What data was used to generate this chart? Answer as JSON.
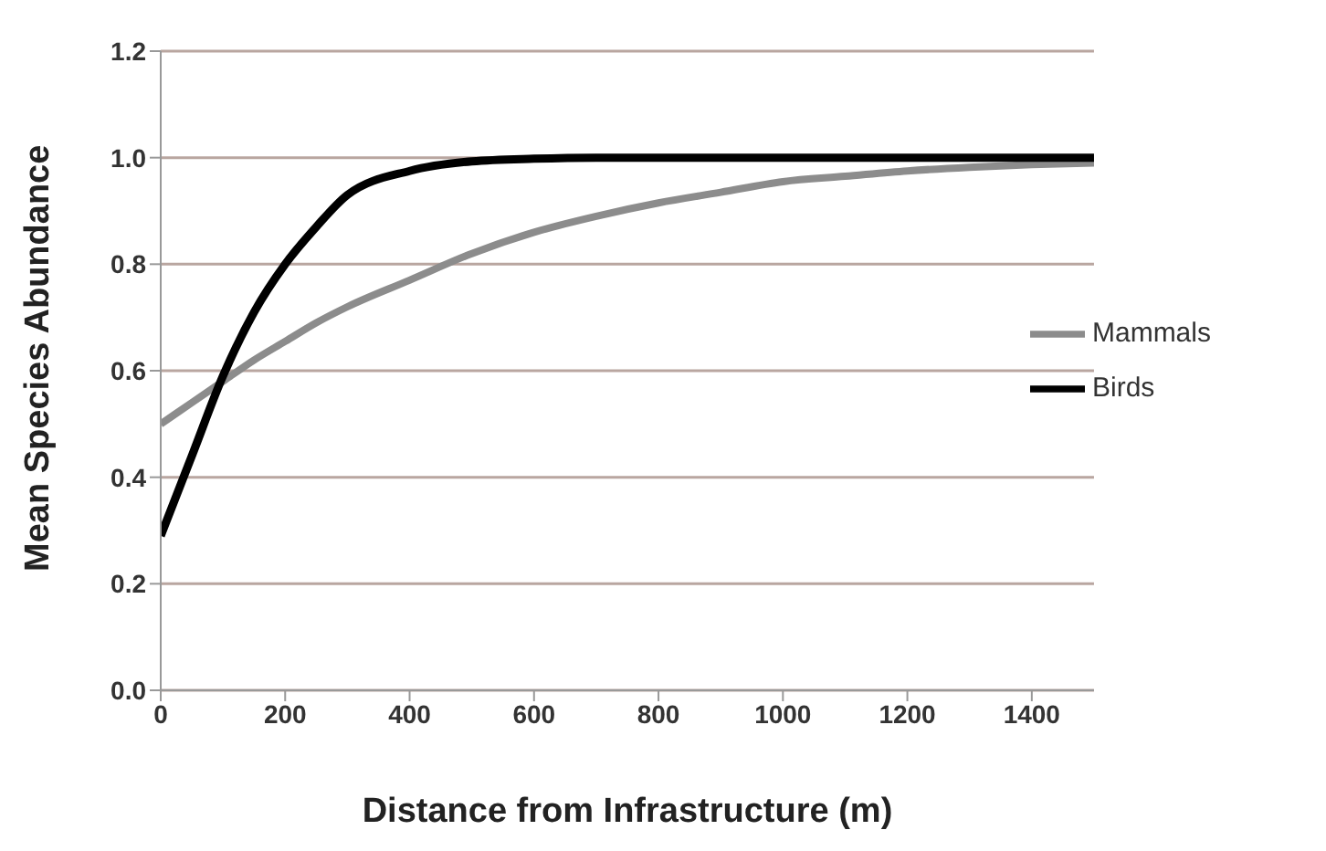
{
  "chart_data": {
    "type": "line",
    "xlabel": "Distance from Infrastructure (m)",
    "ylabel": "Mean Species Abundance",
    "x": [
      0,
      50,
      100,
      150,
      200,
      250,
      300,
      400,
      500,
      600,
      700,
      800,
      900,
      1000,
      1100,
      1200,
      1300,
      1400,
      1500
    ],
    "series": [
      {
        "name": "Mammals",
        "color": "#8c8c8c",
        "values": [
          0.5,
          0.54,
          0.58,
          0.62,
          0.655,
          0.69,
          0.72,
          0.77,
          0.82,
          0.86,
          0.89,
          0.915,
          0.935,
          0.955,
          0.965,
          0.975,
          0.982,
          0.987,
          0.99
        ]
      },
      {
        "name": "Birds",
        "color": "#000000",
        "values": [
          0.29,
          0.44,
          0.59,
          0.71,
          0.8,
          0.87,
          0.93,
          0.975,
          0.993,
          0.998,
          1,
          1,
          1,
          1,
          1,
          1,
          1,
          1,
          1
        ]
      }
    ],
    "xlim": [
      0,
      1500
    ],
    "xticks": [
      0,
      200,
      400,
      600,
      800,
      1000,
      1200,
      1400
    ],
    "ylim": [
      0,
      1.2
    ],
    "yticks": [
      {
        "value": 0,
        "label": "0.0"
      },
      0.2,
      0.4,
      0.6,
      0.8,
      {
        "value": 1,
        "label": "1.0"
      },
      1.2
    ],
    "grid": "y",
    "legend": "right",
    "marker": "none",
    "line_style": "solid"
  }
}
